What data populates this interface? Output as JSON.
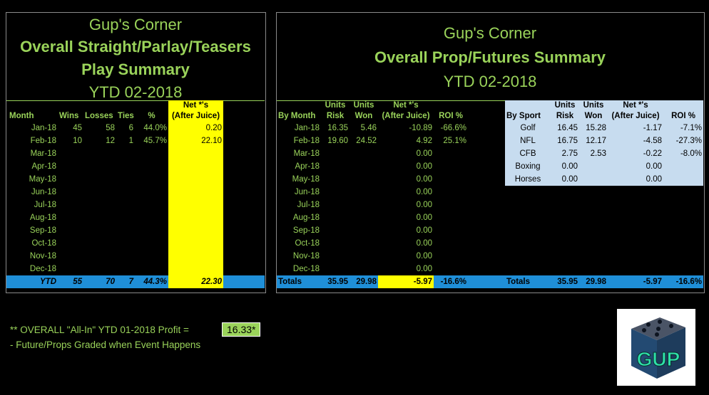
{
  "left": {
    "title1": "Gup's Corner",
    "title2": "Overall Straight/Parlay/Teasers",
    "title3": "Play Summary",
    "title4": "YTD 02-2018",
    "headers": {
      "month": "Month",
      "wins": "Wins",
      "losses": "Losses",
      "ties": "Ties",
      "pct": "%",
      "net1": "Net *'s",
      "net2": "(After Juice)"
    },
    "rows": [
      {
        "month": "Jan-18",
        "wins": "45",
        "losses": "58",
        "ties": "6",
        "pct": "44.0%",
        "net": "0.20"
      },
      {
        "month": "Feb-18",
        "wins": "10",
        "losses": "12",
        "ties": "1",
        "pct": "45.7%",
        "net": "22.10"
      },
      {
        "month": "Mar-18",
        "wins": "",
        "losses": "",
        "ties": "",
        "pct": "",
        "net": ""
      },
      {
        "month": "Apr-18",
        "wins": "",
        "losses": "",
        "ties": "",
        "pct": "",
        "net": ""
      },
      {
        "month": "May-18",
        "wins": "",
        "losses": "",
        "ties": "",
        "pct": "",
        "net": ""
      },
      {
        "month": "Jun-18",
        "wins": "",
        "losses": "",
        "ties": "",
        "pct": "",
        "net": ""
      },
      {
        "month": "Jul-18",
        "wins": "",
        "losses": "",
        "ties": "",
        "pct": "",
        "net": ""
      },
      {
        "month": "Aug-18",
        "wins": "",
        "losses": "",
        "ties": "",
        "pct": "",
        "net": ""
      },
      {
        "month": "Sep-18",
        "wins": "",
        "losses": "",
        "ties": "",
        "pct": "",
        "net": ""
      },
      {
        "month": "Oct-18",
        "wins": "",
        "losses": "",
        "ties": "",
        "pct": "",
        "net": ""
      },
      {
        "month": "Nov-18",
        "wins": "",
        "losses": "",
        "ties": "",
        "pct": "",
        "net": ""
      },
      {
        "month": "Dec-18",
        "wins": "",
        "losses": "",
        "ties": "",
        "pct": "",
        "net": ""
      }
    ],
    "total": {
      "label": "YTD",
      "wins": "55",
      "losses": "70",
      "ties": "7",
      "pct": "44.3%",
      "net": "22.30"
    }
  },
  "right": {
    "title1": "Gup's Corner",
    "title2": "Overall Prop/Futures Summary",
    "title3": "YTD 02-2018",
    "headers": {
      "month": "By Month",
      "risk1": "Units",
      "risk2": "Risk",
      "won1": "Units",
      "won2": "Won",
      "net1": "Net *'s",
      "net2": "(After Juice)",
      "roi": "ROI %"
    },
    "rows": [
      {
        "month": "Jan-18",
        "risk": "16.35",
        "won": "5.46",
        "net": "-10.89",
        "roi": "-66.6%"
      },
      {
        "month": "Feb-18",
        "risk": "19.60",
        "won": "24.52",
        "net": "4.92",
        "roi": "25.1%"
      },
      {
        "month": "Mar-18",
        "risk": "",
        "won": "",
        "net": "0.00",
        "roi": ""
      },
      {
        "month": "Apr-18",
        "risk": "",
        "won": "",
        "net": "0.00",
        "roi": ""
      },
      {
        "month": "May-18",
        "risk": "",
        "won": "",
        "net": "0.00",
        "roi": ""
      },
      {
        "month": "Jun-18",
        "risk": "",
        "won": "",
        "net": "0.00",
        "roi": ""
      },
      {
        "month": "Jul-18",
        "risk": "",
        "won": "",
        "net": "0.00",
        "roi": ""
      },
      {
        "month": "Aug-18",
        "risk": "",
        "won": "",
        "net": "0.00",
        "roi": ""
      },
      {
        "month": "Sep-18",
        "risk": "",
        "won": "",
        "net": "0.00",
        "roi": ""
      },
      {
        "month": "Oct-18",
        "risk": "",
        "won": "",
        "net": "0.00",
        "roi": ""
      },
      {
        "month": "Nov-18",
        "risk": "",
        "won": "",
        "net": "0.00",
        "roi": ""
      },
      {
        "month": "Dec-18",
        "risk": "",
        "won": "",
        "net": "0.00",
        "roi": ""
      }
    ],
    "total": {
      "label": "Totals",
      "risk": "35.95",
      "won": "29.98",
      "net": "-5.97",
      "roi": "-16.6%"
    },
    "sport_headers": {
      "sport": "By Sport",
      "risk1": "Units",
      "risk2": "Risk",
      "won1": "Units",
      "won2": "Won",
      "net1": "Net *'s",
      "net2": "(After Juice)",
      "roi": "ROI %"
    },
    "sports": [
      {
        "sport": "Golf",
        "risk": "16.45",
        "won": "15.28",
        "net": "-1.17",
        "roi": "-7.1%"
      },
      {
        "sport": "NFL",
        "risk": "16.75",
        "won": "12.17",
        "net": "-4.58",
        "roi": "-27.3%"
      },
      {
        "sport": "CFB",
        "risk": "2.75",
        "won": "2.53",
        "net": "-0.22",
        "roi": "-8.0%"
      },
      {
        "sport": "Boxing",
        "risk": "0.00",
        "won": "",
        "net": "0.00",
        "roi": ""
      },
      {
        "sport": "Horses",
        "risk": "0.00",
        "won": "",
        "net": "0.00",
        "roi": ""
      }
    ],
    "sport_total": {
      "label": "Totals",
      "risk": "35.95",
      "won": "29.98",
      "net": "-5.97",
      "roi": "-16.6%"
    }
  },
  "footer": {
    "line1": "** OVERALL \"All-In\" YTD 01-2018 Profit =",
    "profit": "16.33*",
    "line2": "- Future/Props Graded when Event Happens"
  },
  "logo": {
    "text": "GUP"
  }
}
